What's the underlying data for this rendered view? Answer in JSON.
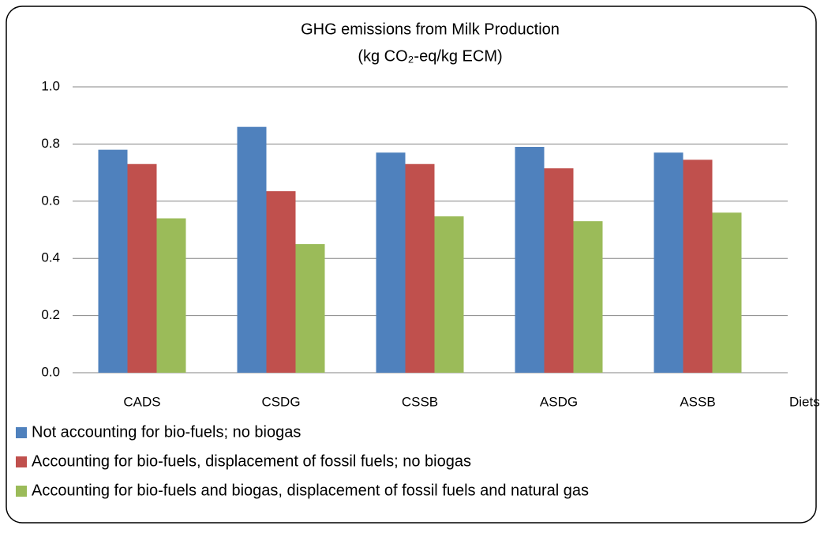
{
  "chart_data": {
    "type": "bar",
    "title": "GHG emissions from Milk Production",
    "subtitle": "(kg CO₂-eq/kg ECM)",
    "x_label": "Diets",
    "categories": [
      "CADS",
      "CSDG",
      "CSSB",
      "ASDG",
      "ASSB"
    ],
    "series": [
      {
        "name": "Not accounting for bio-fuels; no biogas",
        "color": "#4f81bd",
        "values": [
          0.78,
          0.86,
          0.77,
          0.79,
          0.77
        ]
      },
      {
        "name": "Accounting for bio-fuels, displacement of fossil fuels; no biogas",
        "color": "#c0504d",
        "values": [
          0.73,
          0.635,
          0.73,
          0.715,
          0.745
        ]
      },
      {
        "name": "Accounting for bio-fuels and biogas, displacement of fossil fuels and natural gas",
        "color": "#9bbb59",
        "values": [
          0.54,
          0.45,
          0.547,
          0.53,
          0.56
        ]
      }
    ],
    "ylim": [
      0,
      1.0
    ],
    "yticks": [
      {
        "value": 0,
        "label": "0.0"
      },
      0.2,
      0.4,
      0.6,
      0.8,
      {
        "value": 1.0,
        "label": "1.0"
      }
    ],
    "grid": true,
    "legend": "bottom"
  }
}
